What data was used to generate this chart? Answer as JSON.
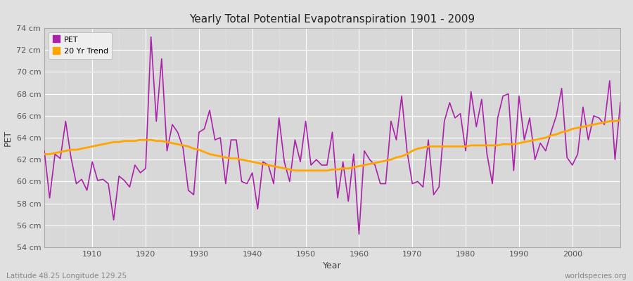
{
  "title": "Yearly Total Potential Evapotranspiration 1901 - 2009",
  "xlabel": "Year",
  "ylabel": "PET",
  "footnote_left": "Latitude 48.25 Longitude 129.25",
  "footnote_right": "worldspecies.org",
  "ylim": [
    54,
    74
  ],
  "ytick_labels": [
    "54 cm",
    "56 cm",
    "58 cm",
    "60 cm",
    "62 cm",
    "64 cm",
    "66 cm",
    "68 cm",
    "70 cm",
    "72 cm",
    "74 cm"
  ],
  "ytick_values": [
    54,
    56,
    58,
    60,
    62,
    64,
    66,
    68,
    70,
    72,
    74
  ],
  "years": [
    1901,
    1902,
    1903,
    1904,
    1905,
    1906,
    1907,
    1908,
    1909,
    1910,
    1911,
    1912,
    1913,
    1914,
    1915,
    1916,
    1917,
    1918,
    1919,
    1920,
    1921,
    1922,
    1923,
    1924,
    1925,
    1926,
    1927,
    1928,
    1929,
    1930,
    1931,
    1932,
    1933,
    1934,
    1935,
    1936,
    1937,
    1938,
    1939,
    1940,
    1941,
    1942,
    1943,
    1944,
    1945,
    1946,
    1947,
    1948,
    1949,
    1950,
    1951,
    1952,
    1953,
    1954,
    1955,
    1956,
    1957,
    1958,
    1959,
    1960,
    1961,
    1962,
    1963,
    1964,
    1965,
    1966,
    1967,
    1968,
    1969,
    1970,
    1971,
    1972,
    1973,
    1974,
    1975,
    1976,
    1977,
    1978,
    1979,
    1980,
    1981,
    1982,
    1983,
    1984,
    1985,
    1986,
    1987,
    1988,
    1989,
    1990,
    1991,
    1992,
    1993,
    1994,
    1995,
    1996,
    1997,
    1998,
    1999,
    2000,
    2001,
    2002,
    2003,
    2004,
    2005,
    2006,
    2007,
    2008,
    2009
  ],
  "pet": [
    62.8,
    58.5,
    62.5,
    62.1,
    65.5,
    62.2,
    59.8,
    60.2,
    59.2,
    61.8,
    60.1,
    60.2,
    59.8,
    56.5,
    60.5,
    60.1,
    59.5,
    61.5,
    60.8,
    61.2,
    73.2,
    65.5,
    71.2,
    62.8,
    65.2,
    64.5,
    63.1,
    59.2,
    58.8,
    64.5,
    64.8,
    66.5,
    63.8,
    64.0,
    59.8,
    63.8,
    63.8,
    60.0,
    59.8,
    60.8,
    57.5,
    61.8,
    61.5,
    59.8,
    65.8,
    61.8,
    60.0,
    63.8,
    61.8,
    65.5,
    61.5,
    62.0,
    61.5,
    61.5,
    64.5,
    58.5,
    61.8,
    58.2,
    62.5,
    55.2,
    62.8,
    62.0,
    61.5,
    59.8,
    59.8,
    65.5,
    63.8,
    67.8,
    62.8,
    59.8,
    60.0,
    59.5,
    63.8,
    58.8,
    59.5,
    65.5,
    67.2,
    65.8,
    66.2,
    62.8,
    68.2,
    65.0,
    67.5,
    62.5,
    59.8,
    65.8,
    67.8,
    68.0,
    61.0,
    67.8,
    63.8,
    65.8,
    62.0,
    63.5,
    62.8,
    64.5,
    66.0,
    68.5,
    62.2,
    61.5,
    62.5,
    66.8,
    63.8,
    66.0,
    65.8,
    65.2,
    69.2,
    62.0,
    67.2
  ],
  "trend": [
    62.5,
    62.5,
    62.6,
    62.7,
    62.8,
    62.9,
    62.9,
    63.0,
    63.1,
    63.2,
    63.3,
    63.4,
    63.5,
    63.6,
    63.6,
    63.7,
    63.7,
    63.7,
    63.8,
    63.8,
    63.8,
    63.7,
    63.7,
    63.6,
    63.5,
    63.4,
    63.3,
    63.2,
    63.0,
    62.9,
    62.7,
    62.5,
    62.4,
    62.3,
    62.2,
    62.1,
    62.1,
    62.0,
    61.9,
    61.8,
    61.7,
    61.6,
    61.5,
    61.4,
    61.3,
    61.2,
    61.1,
    61.0,
    61.0,
    61.0,
    61.0,
    61.0,
    61.0,
    61.0,
    61.1,
    61.1,
    61.2,
    61.2,
    61.3,
    61.4,
    61.5,
    61.6,
    61.7,
    61.8,
    61.9,
    62.0,
    62.2,
    62.3,
    62.5,
    62.8,
    63.0,
    63.1,
    63.2,
    63.2,
    63.2,
    63.2,
    63.2,
    63.2,
    63.2,
    63.2,
    63.3,
    63.3,
    63.3,
    63.3,
    63.3,
    63.3,
    63.4,
    63.4,
    63.4,
    63.5,
    63.6,
    63.7,
    63.8,
    63.9,
    64.0,
    64.2,
    64.3,
    64.5,
    64.6,
    64.8,
    64.9,
    65.0,
    65.1,
    65.2,
    65.3,
    65.4,
    65.5,
    65.5,
    65.6
  ],
  "pet_color": "#AA22AA",
  "trend_color": "#FFA500",
  "bg_color": "#E0E0E0",
  "plot_bg_color": "#D8D8D8",
  "grid_color": "#FFFFFF",
  "title_color": "#222222",
  "axis_label_color": "#444444",
  "tick_label_color": "#555555",
  "footnote_color": "#888888",
  "legend_bg": "#F0F0F0"
}
